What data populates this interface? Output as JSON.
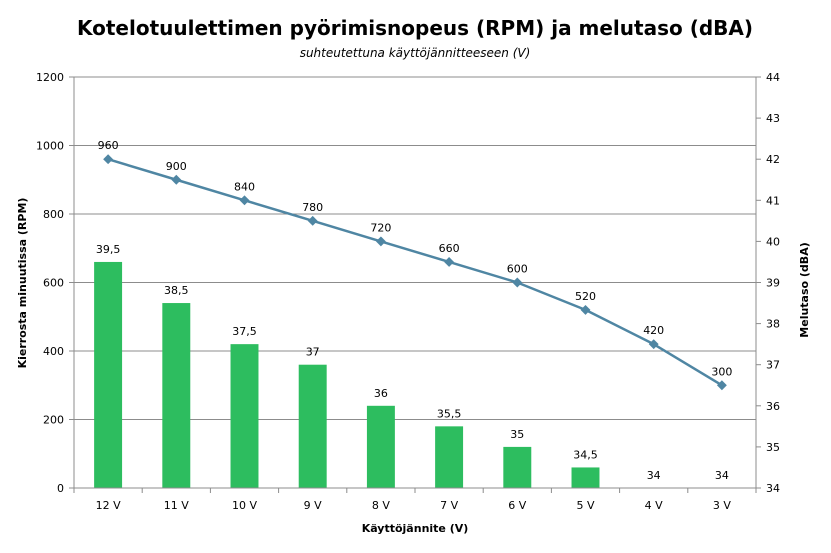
{
  "chart_data": {
    "type": "bar",
    "title": "Kotelotuulettimen pyörimisnopeus (RPM) ja melutaso (dBA)",
    "subtitle": "suhteutettuna käyttöjännitteeseen (V)",
    "xlabel": "Käyttöjännite (V)",
    "ylabel": "Kierrosta minuutissa (RPM)",
    "y2label": "Melutaso (dBA)",
    "categories": [
      "12 V",
      "11 V",
      "10 V",
      "9 V",
      "8 V",
      "7 V",
      "6 V",
      "5 V",
      "4 V",
      "3 V"
    ],
    "ylim": [
      0,
      1200
    ],
    "yticks": [
      0,
      200,
      400,
      600,
      800,
      1000,
      1200
    ],
    "y2lim": [
      34,
      44
    ],
    "y2ticks": [
      34,
      35,
      36,
      37,
      38,
      39,
      40,
      41,
      42,
      43,
      44
    ],
    "grid": true,
    "series": [
      {
        "type": "bar",
        "axis": "right",
        "color": "#2dbd5f",
        "values": [
          39.5,
          38.5,
          37.5,
          37,
          36,
          35.5,
          35,
          34.5,
          34,
          34
        ],
        "labels": [
          "39,5",
          "38,5",
          "37,5",
          "37",
          "36",
          "35,5",
          "35",
          "34,5",
          "34",
          "34"
        ]
      },
      {
        "type": "line",
        "axis": "left",
        "color": "#4f86a3",
        "values": [
          960,
          900,
          840,
          780,
          720,
          660,
          600,
          520,
          420,
          300
        ],
        "labels": [
          "960",
          "900",
          "840",
          "780",
          "720",
          "660",
          "600",
          "520",
          "420",
          "300"
        ]
      }
    ]
  }
}
